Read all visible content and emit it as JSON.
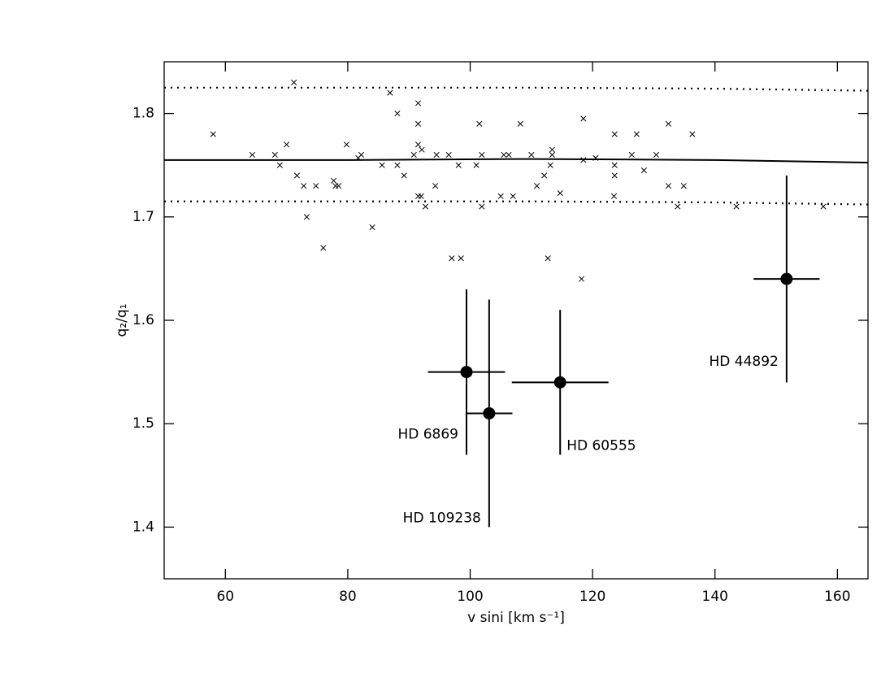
{
  "chart_data": {
    "type": "scatter",
    "x_label": "v sini [km s⁻¹]",
    "y_label": "q₂/q₁",
    "xlim": [
      50,
      165
    ],
    "ylim": [
      1.35,
      1.85
    ],
    "xticks": [
      60,
      80,
      100,
      120,
      140,
      160
    ],
    "yticks": [
      1.4,
      1.5,
      1.6,
      1.7,
      1.8
    ],
    "color": "#000000",
    "crosses": {
      "x": [
        58,
        64.4,
        68.1,
        68.9,
        70,
        71.2,
        71.7,
        72.8,
        73.3,
        74.8,
        76,
        77.7,
        78,
        78.5,
        79.8,
        81.7,
        82.2,
        84,
        85.6,
        86.9,
        88.1,
        88.1,
        89.2,
        90.8,
        91.5,
        91.5,
        91.5,
        91.5,
        92,
        92.1,
        92.7,
        94.3,
        94.5,
        96.5,
        97,
        98.1,
        98.5,
        101,
        101.5,
        101.9,
        101.9,
        105,
        105.5,
        106.3,
        107,
        108.2,
        110,
        110.9,
        112.1,
        112.7,
        113.1,
        113.4,
        113.4,
        114.7,
        118.5,
        118.5,
        118.2,
        120.5,
        123.6,
        123.6,
        123.6,
        123.5,
        126.4,
        127.2,
        128.4,
        130.4,
        132.4,
        132.4,
        133.9,
        134.9,
        136.3,
        143.5,
        157.7
      ],
      "y": [
        1.78,
        1.76,
        1.76,
        1.75,
        1.77,
        1.83,
        1.74,
        1.73,
        1.7,
        1.73,
        1.67,
        1.735,
        1.73,
        1.73,
        1.77,
        1.757,
        1.76,
        1.69,
        1.75,
        1.82,
        1.8,
        1.75,
        1.74,
        1.76,
        1.79,
        1.81,
        1.77,
        1.72,
        1.72,
        1.765,
        1.71,
        1.73,
        1.76,
        1.76,
        1.66,
        1.75,
        1.66,
        1.75,
        1.79,
        1.71,
        1.76,
        1.72,
        1.76,
        1.76,
        1.72,
        1.79,
        1.76,
        1.73,
        1.74,
        1.66,
        1.75,
        1.765,
        1.76,
        1.723,
        1.795,
        1.755,
        1.64,
        1.757,
        1.78,
        1.75,
        1.74,
        1.72,
        1.76,
        1.78,
        1.745,
        1.76,
        1.79,
        1.73,
        1.71,
        1.73,
        1.78,
        1.71,
        1.71
      ]
    },
    "lines": [
      {
        "style": "solid",
        "x": [
          50,
          80,
          110,
          140,
          165
        ],
        "y": [
          1.755,
          1.755,
          1.756,
          1.755,
          1.7525
        ]
      },
      {
        "style": "dotted",
        "x": [
          50,
          80,
          110,
          140,
          165
        ],
        "y": [
          1.825,
          1.825,
          1.825,
          1.824,
          1.822
        ]
      },
      {
        "style": "dotted",
        "x": [
          50,
          80,
          110,
          140,
          165
        ],
        "y": [
          1.715,
          1.715,
          1.715,
          1.714,
          1.712
        ]
      }
    ],
    "stars": [
      {
        "label": "HD 6869",
        "x": 99.4,
        "y": 1.55,
        "xerr": 6.3,
        "yerr": 0.08
      },
      {
        "label": "HD 109238",
        "x": 103.1,
        "y": 1.51,
        "xerr": 3.8,
        "yerr": 0.11
      },
      {
        "label": "HD 60555",
        "x": 114.7,
        "y": 1.54,
        "xerr": 7.9,
        "yerr": 0.07
      },
      {
        "label": "HD 44892",
        "x": 151.7,
        "y": 1.64,
        "xerr": 5.4,
        "yerr": 0.1
      }
    ]
  }
}
